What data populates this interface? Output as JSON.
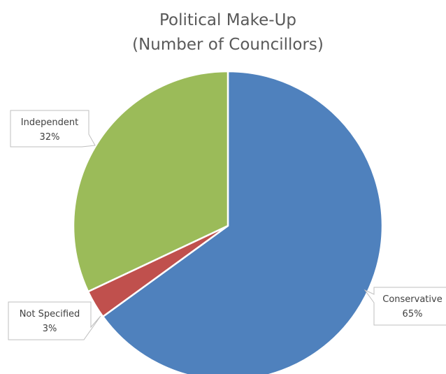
{
  "chart_data": {
    "type": "pie",
    "title": [
      "Political Make-Up",
      "(Number of Councillors)"
    ],
    "categories": [
      "Conservative",
      "Not Specified",
      "Independent"
    ],
    "values": [
      65,
      3,
      32
    ],
    "value_labels": [
      "65%",
      "3%",
      "32%"
    ],
    "colors": [
      "#4F81BD",
      "#C0504D",
      "#9BBB59"
    ],
    "start_angle": "12 o'clock",
    "direction": "clockwise",
    "legend": "none",
    "data_labels": "callouts"
  }
}
